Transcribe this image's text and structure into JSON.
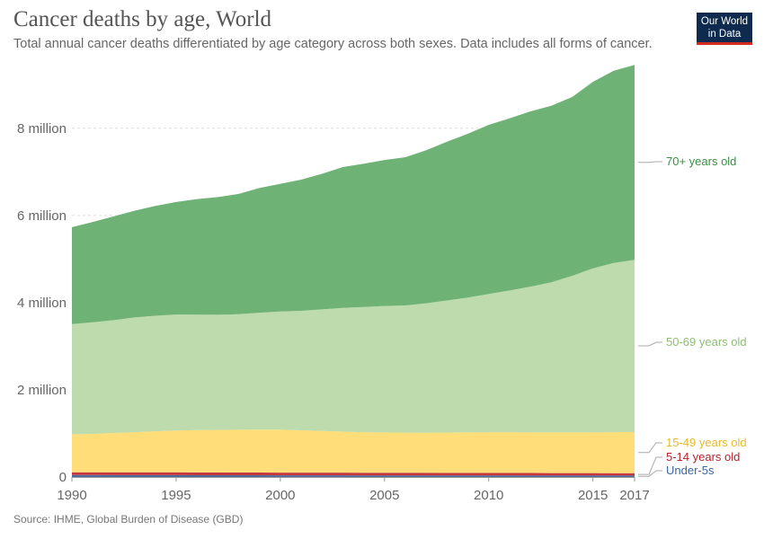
{
  "header": {
    "title": "Cancer deaths by age, World",
    "subtitle": "Total annual cancer deaths differentiated by age category across both sexes. Data includes all forms of cancer.",
    "logo_line1": "Our World",
    "logo_line2": "in Data"
  },
  "footer": {
    "source": "Source: IHME, Global Burden of Disease (GBD)"
  },
  "chart_data": {
    "type": "area",
    "stacked": true,
    "title": "Cancer deaths by age, World",
    "x": [
      1990,
      1991,
      1992,
      1993,
      1994,
      1995,
      1996,
      1997,
      1998,
      1999,
      2000,
      2001,
      2002,
      2003,
      2004,
      2005,
      2006,
      2007,
      2008,
      2009,
      2010,
      2011,
      2012,
      2013,
      2014,
      2015,
      2016,
      2017
    ],
    "x_ticks": [
      1990,
      1995,
      2000,
      2005,
      2010,
      2015,
      2017
    ],
    "x_tick_labels": [
      "1990",
      "1995",
      "2000",
      "2005",
      "2010",
      "2015",
      "2017"
    ],
    "y_ticks": [
      0,
      2000000,
      4000000,
      6000000,
      8000000
    ],
    "y_tick_labels": [
      "0",
      "2 million",
      "4 million",
      "6 million",
      "8 million"
    ],
    "ylim": [
      0,
      9500000
    ],
    "legend_position": "right",
    "series": [
      {
        "name": "Under-5s",
        "color": "#4c6a9c",
        "values": [
          45000,
          45000,
          44000,
          44000,
          43000,
          43000,
          42000,
          42000,
          41000,
          41000,
          40000,
          40000,
          39000,
          39000,
          38000,
          38000,
          37000,
          37000,
          36000,
          36000,
          35000,
          35000,
          34000,
          34000,
          33000,
          33000,
          32000,
          32000
        ]
      },
      {
        "name": "5-14 years old",
        "color": "#c4383d",
        "values": [
          65000,
          65000,
          65000,
          65000,
          65000,
          64000,
          64000,
          64000,
          63000,
          63000,
          62000,
          62000,
          61000,
          61000,
          60000,
          60000,
          60000,
          59000,
          59000,
          59000,
          58000,
          58000,
          58000,
          57000,
          57000,
          57000,
          56000,
          56000
        ]
      },
      {
        "name": "15-49 years old",
        "color": "#ffdd78",
        "values": [
          870000,
          880000,
          900000,
          920000,
          940000,
          960000,
          970000,
          975000,
          980000,
          985000,
          985000,
          970000,
          955000,
          940000,
          930000,
          925000,
          920000,
          920000,
          925000,
          930000,
          935000,
          935000,
          935000,
          935000,
          935000,
          935000,
          940000,
          945000
        ]
      },
      {
        "name": "50-69 years old",
        "color": "#bddbac",
        "values": [
          2530000,
          2560000,
          2590000,
          2630000,
          2650000,
          2660000,
          2650000,
          2640000,
          2650000,
          2680000,
          2710000,
          2740000,
          2790000,
          2840000,
          2870000,
          2900000,
          2920000,
          2970000,
          3030000,
          3090000,
          3170000,
          3250000,
          3340000,
          3440000,
          3590000,
          3760000,
          3880000,
          3950000
        ]
      },
      {
        "name": "70+ years old",
        "color": "#6fb275",
        "values": [
          2220000,
          2300000,
          2380000,
          2450000,
          2520000,
          2580000,
          2650000,
          2700000,
          2760000,
          2860000,
          2930000,
          3010000,
          3110000,
          3230000,
          3290000,
          3350000,
          3400000,
          3510000,
          3640000,
          3760000,
          3880000,
          3950000,
          4020000,
          4050000,
          4100000,
          4280000,
          4410000,
          4470000
        ]
      }
    ]
  }
}
